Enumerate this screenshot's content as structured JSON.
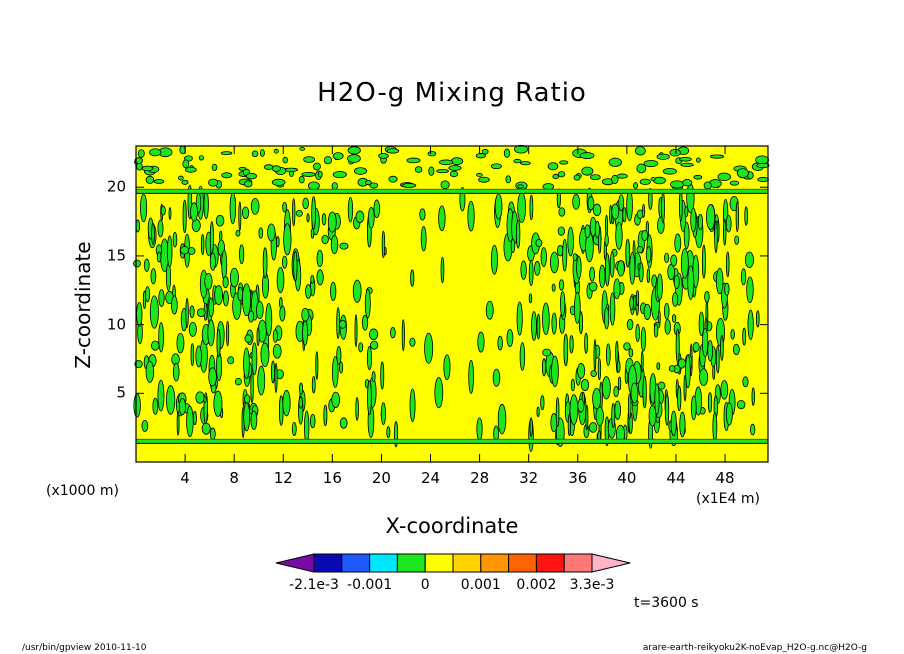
{
  "chart_data": {
    "type": "heatmap",
    "title": "H2O-g Mixing Ratio",
    "xlabel": "X-coordinate",
    "ylabel": "Z-coordinate",
    "x_unit_label": "(x1E4 m)",
    "z_unit_label": "(x1000 m)",
    "xlim": [
      0,
      51.5
    ],
    "ylim": [
      0,
      23
    ],
    "x_ticks": [
      "4",
      "8",
      "12",
      "16",
      "20",
      "24",
      "28",
      "32",
      "36",
      "40",
      "44",
      "48"
    ],
    "y_ticks": [
      "5",
      "10",
      "15",
      "20"
    ],
    "y_tick_values": [
      5,
      10,
      15,
      20
    ],
    "x_tick_values": [
      4,
      8,
      12,
      16,
      20,
      24,
      28,
      32,
      36,
      40,
      44,
      48
    ],
    "time_label": "t=3600 s",
    "colorbar": {
      "colors": [
        "#7a0aa8",
        "#0a0ab4",
        "#1e5aff",
        "#00e6ff",
        "#1ee61e",
        "#ffff00",
        "#ffd200",
        "#ff9600",
        "#ff6400",
        "#ff1414",
        "#ff7878",
        "#ffb4c8"
      ],
      "labels": [
        "-2.1e-3",
        "-0.001",
        "0",
        "0.001",
        "0.002",
        "3.3e-3"
      ]
    },
    "field_colors": {
      "background": "#ffff00",
      "positive_anomaly": "#1ee61e",
      "contour": "#000000"
    },
    "horizontal_bands_z": [
      1.5,
      19.7
    ]
  },
  "footer": {
    "left": "/usr/bin/gpview   2010-11-10",
    "right": "arare-earth-reikyoku2K-noEvap_H2O-g.nc@H2O-g"
  }
}
